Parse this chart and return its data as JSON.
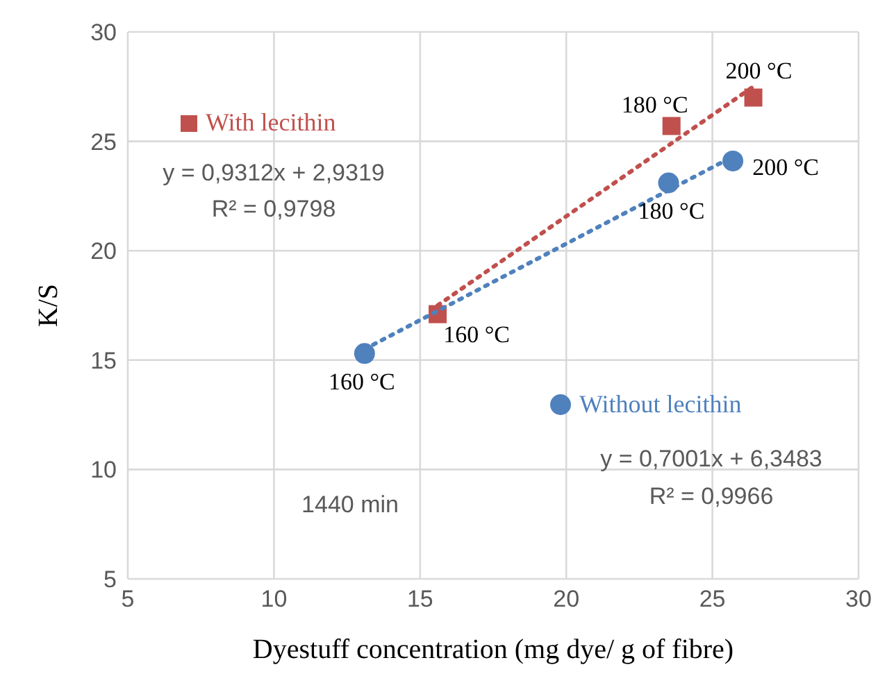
{
  "chart_data": {
    "type": "scatter",
    "xlabel": "Dyestuff concentration (mg dye/ g of fibre)",
    "ylabel": "K/S",
    "xlim": [
      5,
      30
    ],
    "xticks": [
      5,
      10,
      15,
      20,
      25,
      30
    ],
    "ylim": [
      5,
      30
    ],
    "yticks": [
      5,
      10,
      15,
      20,
      25,
      30
    ],
    "grid": true,
    "legend": "top left",
    "series": [
      {
        "name": "With lecithin",
        "type": "scatter",
        "marker": "square",
        "color": "#c0504d",
        "x": [
          15.6,
          23.6,
          26.4
        ],
        "values": [
          17.1,
          25.7,
          27.0
        ]
      },
      {
        "name": "Without lecithin",
        "type": "scatter",
        "marker": "circle",
        "color": "#4f81bd",
        "x": [
          13.1,
          23.5,
          25.7
        ],
        "values": [
          15.3,
          23.1,
          24.1
        ]
      },
      {
        "type": "line",
        "line_style": "dotted",
        "marker": "none",
        "color": "#c0504d",
        "x": [
          15.6,
          26.4
        ],
        "values": [
          17.5,
          27.5
        ]
      },
      {
        "type": "line",
        "line_style": "dotted",
        "marker": "none",
        "color": "#4f81bd",
        "x": [
          13.1,
          25.7
        ],
        "values": [
          15.5,
          24.3
        ]
      }
    ],
    "annotations": [
      "y = 0,9312x + 2,9319",
      "R² = 0,9798",
      "y = 0,7001x + 6,3483",
      "R² = 0,9966",
      "1440 min",
      {
        "text": "160 °C",
        "x": 15.6,
        "y": 17.1
      },
      {
        "text": "180 °C",
        "x": 23.6,
        "y": 25.7
      },
      {
        "text": "200 °C",
        "x": 26.4,
        "y": 27.0
      },
      {
        "text": "160 °C",
        "x": 13.1,
        "y": 15.3
      },
      {
        "text": "180 °C",
        "x": 23.5,
        "y": 23.1
      },
      {
        "text": "200 °C",
        "x": 25.7,
        "y": 24.1
      }
    ]
  }
}
